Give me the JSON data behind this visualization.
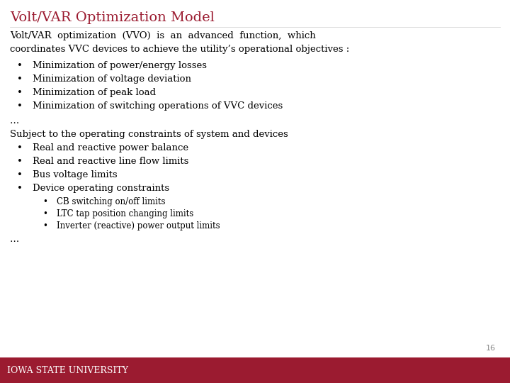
{
  "title": "Volt/VAR Optimization Model",
  "title_color": "#9B1B30",
  "background_color": "#FFFFFF",
  "body_text_color": "#000000",
  "footer_bg_color": "#9B1B30",
  "footer_text": "Iowa State University",
  "footer_text_color": "#FFFFFF",
  "page_number": "16",
  "intro_line1": "Volt/VAR  optimization  (VVO)  is  an  advanced  function,  which",
  "intro_line2": "coordinates VVC devices to achieve the utility’s operational objectives :",
  "bullet1_items": [
    "Minimization of power/energy losses",
    "Minimization of voltage deviation",
    "Minimization of peak load",
    "Minimization of switching operations of VVC devices"
  ],
  "ellipsis1": "…",
  "subject_line": "Subject to the operating constraints of system and devices",
  "bullet2_items": [
    "Real and reactive power balance",
    "Real and reactive line flow limits",
    "Bus voltage limits",
    "Device operating constraints"
  ],
  "sub_bullet_items": [
    "CB switching on/off limits",
    "LTC tap position changing limits",
    "Inverter (reactive) power output limits"
  ],
  "ellipsis2": "…",
  "font_size_title": 14,
  "font_size_body": 9.5,
  "font_size_sub": 8.5
}
